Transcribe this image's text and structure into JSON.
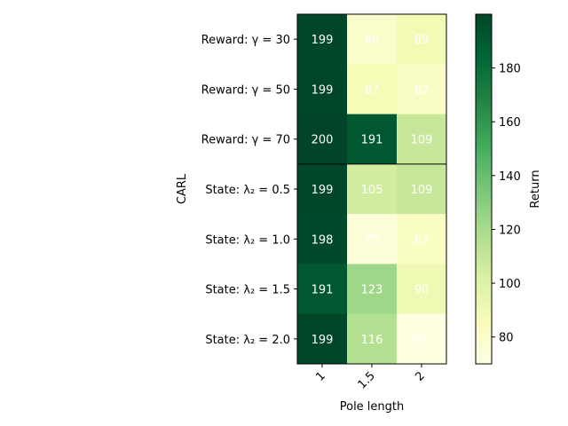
{
  "chart_data": {
    "type": "heatmap",
    "xlabel": "Pole length",
    "ylabel": "CARL",
    "x_categories": [
      "1",
      "1.5",
      "2"
    ],
    "y_categories": [
      "Reward: γ = 30",
      "Reward: γ = 50",
      "Reward: γ = 70",
      "State: λ₂ = 0.5",
      "State: λ₂ = 1.0",
      "State: λ₂ = 1.5",
      "State: λ₂ = 2.0"
    ],
    "values": [
      [
        199,
        80,
        89
      ],
      [
        199,
        87,
        82
      ],
      [
        200,
        191,
        109
      ],
      [
        199,
        105,
        109
      ],
      [
        198,
        75,
        83
      ],
      [
        191,
        123,
        90
      ],
      [
        199,
        116,
        71
      ]
    ],
    "group_separator_after_row": 2,
    "colorbar": {
      "label": "Return",
      "range": [
        70,
        200
      ],
      "ticks": [
        80,
        100,
        120,
        140,
        160,
        180
      ],
      "colormap": "YlGn",
      "colors": [
        "#ffffe5",
        "#f7fcb9",
        "#d9f0a3",
        "#addd8e",
        "#78c679",
        "#41ab5d",
        "#238443",
        "#006837",
        "#004529"
      ]
    }
  }
}
